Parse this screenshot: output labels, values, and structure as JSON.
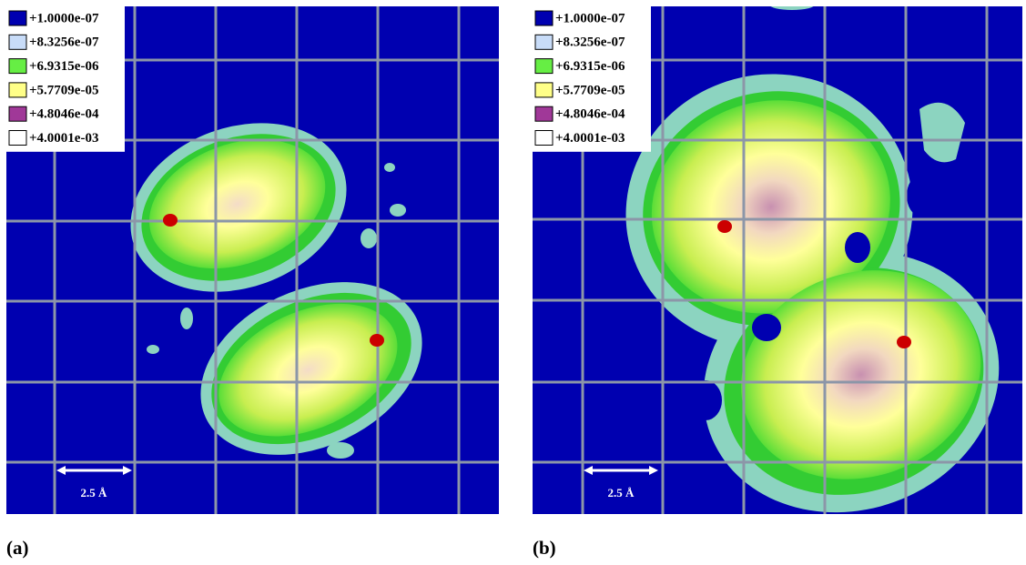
{
  "panels": [
    {
      "label": "(a)",
      "scale_bar": "2.5 Å",
      "legend": [
        {
          "label": "+1.0000e-07",
          "color": "#0000b0"
        },
        {
          "label": "+8.3256e-07",
          "color": "#c8dcf8"
        },
        {
          "label": "+6.9315e-06",
          "color": "#66ee44"
        },
        {
          "label": "+5.7709e-05",
          "color": "#ffff88"
        },
        {
          "label": "+4.8046e-04",
          "color": "#a03898"
        },
        {
          "label": "+4.0001e-03",
          "color": "#ffffff"
        }
      ]
    },
    {
      "label": "(b)",
      "scale_bar": "2.5 Å",
      "legend": [
        {
          "label": "+1.0000e-07",
          "color": "#0000b0"
        },
        {
          "label": "+8.3256e-07",
          "color": "#c8dcf8"
        },
        {
          "label": "+6.9315e-06",
          "color": "#66ee44"
        },
        {
          "label": "+5.7709e-05",
          "color": "#ffff88"
        },
        {
          "label": "+4.8046e-04",
          "color": "#a03898"
        },
        {
          "label": "+4.0001e-03",
          "color": "#ffffff"
        }
      ]
    }
  ]
}
